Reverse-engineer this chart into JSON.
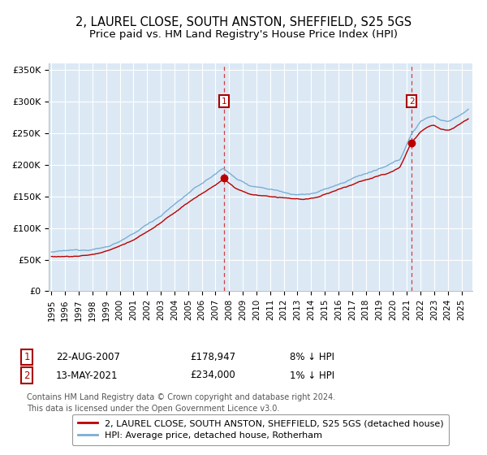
{
  "title": "2, LAUREL CLOSE, SOUTH ANSTON, SHEFFIELD, S25 5GS",
  "subtitle": "Price paid vs. HM Land Registry's House Price Index (HPI)",
  "fig_bg_color": "#ffffff",
  "plot_bg_color": "#dce9f5",
  "ylim": [
    0,
    360000
  ],
  "yticks": [
    0,
    50000,
    100000,
    150000,
    200000,
    250000,
    300000,
    350000
  ],
  "ytick_labels": [
    "£0",
    "£50K",
    "£100K",
    "£150K",
    "£200K",
    "£250K",
    "£300K",
    "£350K"
  ],
  "xlim_start": 1994.8,
  "xlim_end": 2025.8,
  "xtick_years": [
    1995,
    1996,
    1997,
    1998,
    1999,
    2000,
    2001,
    2002,
    2003,
    2004,
    2005,
    2006,
    2007,
    2008,
    2009,
    2010,
    2011,
    2012,
    2013,
    2014,
    2015,
    2016,
    2017,
    2018,
    2019,
    2020,
    2021,
    2022,
    2023,
    2024,
    2025
  ],
  "sale1_x": 2007.64,
  "sale1_y": 178947,
  "sale2_x": 2021.36,
  "sale2_y": 234000,
  "red_line_color": "#bb0000",
  "blue_line_color": "#7aaed4",
  "marker_box_color": "#aa0000",
  "dashed_line_color": "#cc2222",
  "grid_color": "#ffffff",
  "legend_line1": "2, LAUREL CLOSE, SOUTH ANSTON, SHEFFIELD, S25 5GS (detached house)",
  "legend_line2": "HPI: Average price, detached house, Rotherham",
  "sale1_date": "22-AUG-2007",
  "sale1_price": "£178,947",
  "sale1_hpi": "8% ↓ HPI",
  "sale2_date": "13-MAY-2021",
  "sale2_price": "£234,000",
  "sale2_hpi": "1% ↓ HPI",
  "footnote": "Contains HM Land Registry data © Crown copyright and database right 2024.\nThis data is licensed under the Open Government Licence v3.0.",
  "title_fontsize": 10.5,
  "axis_fontsize": 8.0,
  "legend_fontsize": 8.0,
  "table_fontsize": 8.5,
  "footnote_fontsize": 7.0
}
